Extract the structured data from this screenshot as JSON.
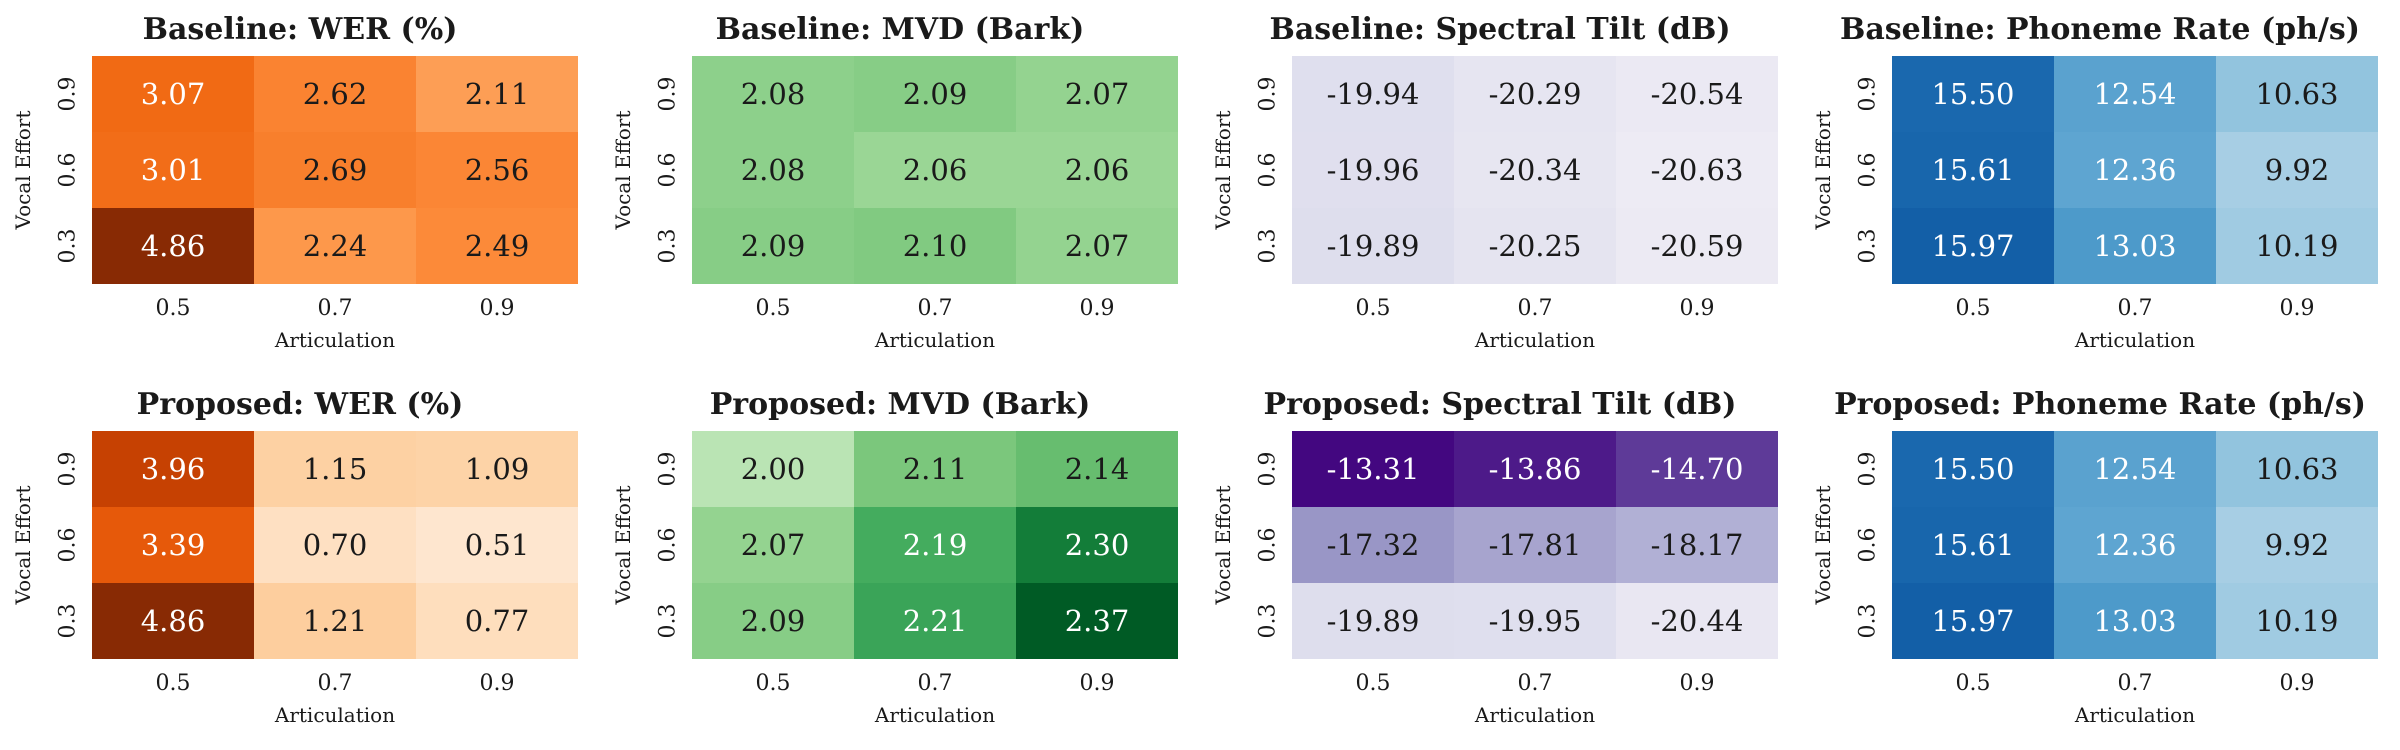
{
  "chart_data": [
    {
      "type": "heatmap",
      "title": "Baseline: WER (%)",
      "xlabel": "Articulation",
      "ylabel": "Vocal Effort",
      "x": [
        "0.5",
        "0.7",
        "0.9"
      ],
      "y": [
        "0.9",
        "0.6",
        "0.3"
      ],
      "cmap": "Oranges",
      "vmin": 0.5,
      "vmax": 4.9,
      "values": [
        [
          3.07,
          2.62,
          2.11
        ],
        [
          3.01,
          2.69,
          2.56
        ],
        [
          4.86,
          2.24,
          2.49
        ]
      ],
      "labels": [
        [
          "3.07",
          "2.62",
          "2.11"
        ],
        [
          "3.01",
          "2.69",
          "2.56"
        ],
        [
          "4.86",
          "2.24",
          "2.49"
        ]
      ]
    },
    {
      "type": "heatmap",
      "title": "Baseline: MVD (Bark)",
      "xlabel": "Articulation",
      "ylabel": "Vocal Effort",
      "x": [
        "0.5",
        "0.7",
        "0.9"
      ],
      "y": [
        "0.9",
        "0.6",
        "0.3"
      ],
      "cmap": "Greens",
      "vmin": 1.9,
      "vmax": 2.4,
      "values": [
        [
          2.08,
          2.09,
          2.07
        ],
        [
          2.08,
          2.06,
          2.06
        ],
        [
          2.09,
          2.1,
          2.07
        ]
      ],
      "labels": [
        [
          "2.08",
          "2.09",
          "2.07"
        ],
        [
          "2.08",
          "2.06",
          "2.06"
        ],
        [
          "2.09",
          "2.10",
          "2.07"
        ]
      ]
    },
    {
      "type": "heatmap",
      "title": "Baseline: Spectral Tilt (dB)",
      "xlabel": "Articulation",
      "ylabel": "Vocal Effort",
      "x": [
        "0.5",
        "0.7",
        "0.9"
      ],
      "y": [
        "0.9",
        "0.6",
        "0.3"
      ],
      "cmap": "Purples",
      "vmin": -20.8,
      "vmax": -13.3,
      "values": [
        [
          -19.94,
          -20.29,
          -20.54
        ],
        [
          -19.96,
          -20.34,
          -20.63
        ],
        [
          -19.89,
          -20.25,
          -20.59
        ]
      ],
      "labels": [
        [
          "-19.94",
          "-20.29",
          "-20.54"
        ],
        [
          "-19.96",
          "-20.34",
          "-20.63"
        ],
        [
          "-19.89",
          "-20.25",
          "-20.59"
        ]
      ]
    },
    {
      "type": "heatmap",
      "title": "Baseline: Phoneme Rate (ph/s)",
      "xlabel": "Articulation",
      "ylabel": "Vocal Effort",
      "x": [
        "0.5",
        "0.7",
        "0.9"
      ],
      "y": [
        "0.9",
        "0.6",
        "0.3"
      ],
      "cmap": "Blues",
      "vmin": 7,
      "vmax": 18,
      "values": [
        [
          15.5,
          12.54,
          10.63
        ],
        [
          15.61,
          12.36,
          9.92
        ],
        [
          15.97,
          13.03,
          10.19
        ]
      ],
      "labels": [
        [
          "15.50",
          "12.54",
          "10.63"
        ],
        [
          "15.61",
          "12.36",
          "9.92"
        ],
        [
          "15.97",
          "13.03",
          "10.19"
        ]
      ]
    },
    {
      "type": "heatmap",
      "title": "Proposed: WER (%)",
      "xlabel": "Articulation",
      "ylabel": "Vocal Effort",
      "x": [
        "0.5",
        "0.7",
        "0.9"
      ],
      "y": [
        "0.9",
        "0.6",
        "0.3"
      ],
      "cmap": "Oranges",
      "vmin": 0.5,
      "vmax": 4.9,
      "values": [
        [
          3.96,
          1.15,
          1.09
        ],
        [
          3.39,
          0.7,
          0.51
        ],
        [
          4.86,
          1.21,
          0.77
        ]
      ],
      "labels": [
        [
          "3.96",
          "1.15",
          "1.09"
        ],
        [
          "3.39",
          "0.70",
          "0.51"
        ],
        [
          "4.86",
          "1.21",
          "0.77"
        ]
      ]
    },
    {
      "type": "heatmap",
      "title": "Proposed: MVD (Bark)",
      "xlabel": "Articulation",
      "ylabel": "Vocal Effort",
      "x": [
        "0.5",
        "0.7",
        "0.9"
      ],
      "y": [
        "0.9",
        "0.6",
        "0.3"
      ],
      "cmap": "Greens",
      "vmin": 1.9,
      "vmax": 2.4,
      "values": [
        [
          2.0,
          2.11,
          2.14
        ],
        [
          2.07,
          2.19,
          2.3
        ],
        [
          2.09,
          2.21,
          2.37
        ]
      ],
      "labels": [
        [
          "2.00",
          "2.11",
          "2.14"
        ],
        [
          "2.07",
          "2.19",
          "2.30"
        ],
        [
          "2.09",
          "2.21",
          "2.37"
        ]
      ]
    },
    {
      "type": "heatmap",
      "title": "Proposed: Spectral Tilt (dB)",
      "xlabel": "Articulation",
      "ylabel": "Vocal Effort",
      "x": [
        "0.5",
        "0.7",
        "0.9"
      ],
      "y": [
        "0.9",
        "0.6",
        "0.3"
      ],
      "cmap": "Purples",
      "vmin": -20.8,
      "vmax": -13.3,
      "values": [
        [
          -13.31,
          -13.86,
          -14.7
        ],
        [
          -17.32,
          -17.81,
          -18.17
        ],
        [
          -19.89,
          -19.95,
          -20.44
        ]
      ],
      "labels": [
        [
          "-13.31",
          "-13.86",
          "-14.70"
        ],
        [
          "-17.32",
          "-17.81",
          "-18.17"
        ],
        [
          "-19.89",
          "-19.95",
          "-20.44"
        ]
      ]
    },
    {
      "type": "heatmap",
      "title": "Proposed: Phoneme Rate (ph/s)",
      "xlabel": "Articulation",
      "ylabel": "Vocal Effort",
      "x": [
        "0.5",
        "0.7",
        "0.9"
      ],
      "y": [
        "0.9",
        "0.6",
        "0.3"
      ],
      "cmap": "Blues",
      "vmin": 7,
      "vmax": 18,
      "values": [
        [
          15.5,
          12.54,
          10.63
        ],
        [
          15.61,
          12.36,
          9.92
        ],
        [
          15.97,
          13.03,
          10.19
        ]
      ],
      "labels": [
        [
          "15.50",
          "12.54",
          "10.63"
        ],
        [
          "15.61",
          "12.36",
          "9.92"
        ],
        [
          "15.97",
          "13.03",
          "10.19"
        ]
      ]
    }
  ]
}
